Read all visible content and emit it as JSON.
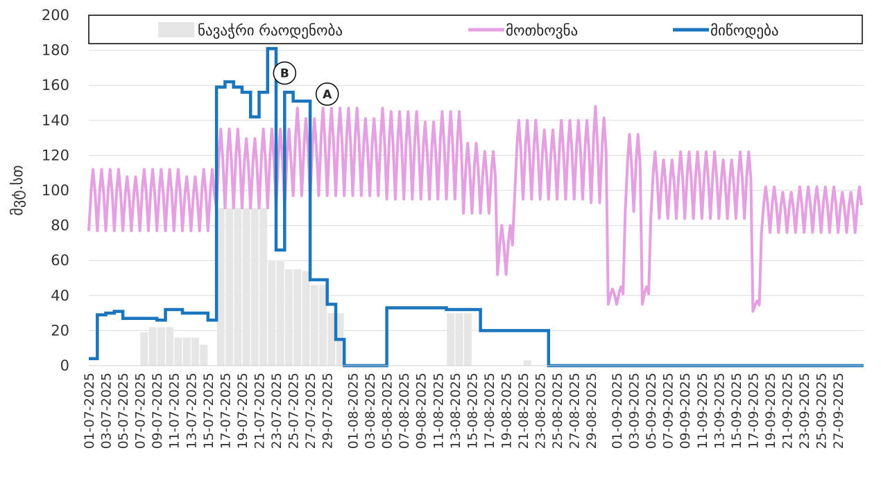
{
  "chart_data": {
    "type": "line",
    "title": "",
    "xlabel": "",
    "ylabel": "მვტ.სთ",
    "ylim": [
      0,
      200
    ],
    "yticks": [
      0,
      20,
      40,
      60,
      80,
      100,
      120,
      140,
      160,
      180,
      200
    ],
    "grid": "horizontal",
    "legend_position": "top",
    "x_tick_labels": [
      "01-07-2025",
      "03-07-2025",
      "05-07-2025",
      "07-07-2025",
      "09-07-2025",
      "11-07-2025",
      "13-07-2025",
      "15-07-2025",
      "17-07-2025",
      "19-07-2025",
      "21-07-2025",
      "23-07-2025",
      "25-07-2025",
      "27-07-2025",
      "29-07-2025",
      "01-08-2025",
      "03-08-2025",
      "05-08-2025",
      "07-08-2025",
      "09-08-2025",
      "11-08-2025",
      "13-08-2025",
      "15-08-2025",
      "17-08-2025",
      "19-08-2025",
      "21-08-2025",
      "23-08-2025",
      "25-08-2025",
      "27-08-2025",
      "29-08-2025",
      "01-09-2025",
      "03-09-2025",
      "05-09-2025",
      "07-09-2025",
      "09-09-2025",
      "11-09-2025",
      "13-09-2025",
      "15-09-2025",
      "17-09-2025",
      "19-09-2025",
      "21-09-2025",
      "23-09-2025",
      "25-09-2025",
      "27-09-2025"
    ],
    "x_range": [
      "2025-07-01",
      "2025-09-30"
    ],
    "series": [
      {
        "name": "ნავაჭრი რაოდენობა",
        "kind": "bar",
        "color": "#e6e6e6",
        "steps": [
          {
            "start": "2025-07-01",
            "end": "2025-07-07",
            "value": 0
          },
          {
            "start": "2025-07-07",
            "end": "2025-07-08",
            "value": 19
          },
          {
            "start": "2025-07-08",
            "end": "2025-07-11",
            "value": 22
          },
          {
            "start": "2025-07-11",
            "end": "2025-07-14",
            "value": 16
          },
          {
            "start": "2025-07-14",
            "end": "2025-07-15",
            "value": 12
          },
          {
            "start": "2025-07-15",
            "end": "2025-07-16",
            "value": 0
          },
          {
            "start": "2025-07-16",
            "end": "2025-07-22",
            "value": 90
          },
          {
            "start": "2025-07-22",
            "end": "2025-07-24",
            "value": 60
          },
          {
            "start": "2025-07-24",
            "end": "2025-07-26",
            "value": 55
          },
          {
            "start": "2025-07-26",
            "end": "2025-07-27",
            "value": 54
          },
          {
            "start": "2025-07-27",
            "end": "2025-07-29",
            "value": 46
          },
          {
            "start": "2025-07-29",
            "end": "2025-07-31",
            "value": 30
          },
          {
            "start": "2025-07-31",
            "end": "2025-08-12",
            "value": 0
          },
          {
            "start": "2025-08-12",
            "end": "2025-08-15",
            "value": 30
          },
          {
            "start": "2025-08-15",
            "end": "2025-08-21",
            "value": 0
          },
          {
            "start": "2025-08-21",
            "end": "2025-08-22",
            "value": 3
          },
          {
            "start": "2025-08-22",
            "end": "2025-09-30",
            "value": 0
          }
        ]
      },
      {
        "name": "მოთხოვნა",
        "kind": "line",
        "color": "#e4a0e0",
        "pattern": "daily oscillation between low and high",
        "envelope": [
          {
            "start": "2025-07-01",
            "end": "2025-07-16",
            "low": 77,
            "high": 112
          },
          {
            "start": "2025-07-16",
            "end": "2025-07-25",
            "low": 90,
            "high": 135
          },
          {
            "start": "2025-07-25",
            "end": "2025-08-05",
            "low": 97,
            "high": 147
          },
          {
            "start": "2025-08-05",
            "end": "2025-08-14",
            "low": 95,
            "high": 145
          },
          {
            "start": "2025-08-14",
            "end": "2025-08-18",
            "low": 87,
            "high": 127
          },
          {
            "start": "2025-08-18",
            "end": "2025-08-20",
            "low": 52,
            "high": 80
          },
          {
            "start": "2025-08-20",
            "end": "2025-08-29",
            "low": 95,
            "high": 140
          },
          {
            "start": "2025-08-29",
            "end": "2025-08-31",
            "low": 93,
            "high": 148
          },
          {
            "start": "2025-08-31",
            "end": "2025-09-02",
            "low": 35,
            "high": 45
          },
          {
            "start": "2025-09-02",
            "end": "2025-09-04",
            "low": 88,
            "high": 132
          },
          {
            "start": "2025-09-04",
            "end": "2025-09-05",
            "low": 35,
            "high": 45
          },
          {
            "start": "2025-09-05",
            "end": "2025-09-17",
            "low": 84,
            "high": 122
          },
          {
            "start": "2025-09-17",
            "end": "2025-09-18",
            "low": 31,
            "high": 37
          },
          {
            "start": "2025-09-18",
            "end": "2025-09-30",
            "low": 76,
            "high": 102
          }
        ]
      },
      {
        "name": "მიწოდება",
        "kind": "step",
        "color": "#1b75bc",
        "steps": [
          {
            "start": "2025-07-01",
            "end": "2025-07-02",
            "value": 4
          },
          {
            "start": "2025-07-02",
            "end": "2025-07-03",
            "value": 29
          },
          {
            "start": "2025-07-03",
            "end": "2025-07-04",
            "value": 30
          },
          {
            "start": "2025-07-04",
            "end": "2025-07-05",
            "value": 31
          },
          {
            "start": "2025-07-05",
            "end": "2025-07-09",
            "value": 27
          },
          {
            "start": "2025-07-09",
            "end": "2025-07-10",
            "value": 26
          },
          {
            "start": "2025-07-10",
            "end": "2025-07-12",
            "value": 32
          },
          {
            "start": "2025-07-12",
            "end": "2025-07-15",
            "value": 30
          },
          {
            "start": "2025-07-15",
            "end": "2025-07-16",
            "value": 26
          },
          {
            "start": "2025-07-16",
            "end": "2025-07-17",
            "value": 159
          },
          {
            "start": "2025-07-17",
            "end": "2025-07-18",
            "value": 162
          },
          {
            "start": "2025-07-18",
            "end": "2025-07-19",
            "value": 159
          },
          {
            "start": "2025-07-19",
            "end": "2025-07-20",
            "value": 156
          },
          {
            "start": "2025-07-20",
            "end": "2025-07-21",
            "value": 142
          },
          {
            "start": "2025-07-21",
            "end": "2025-07-22",
            "value": 156
          },
          {
            "start": "2025-07-22",
            "end": "2025-07-23",
            "value": 181
          },
          {
            "start": "2025-07-23",
            "end": "2025-07-24",
            "value": 66
          },
          {
            "start": "2025-07-24",
            "end": "2025-07-25",
            "value": 156
          },
          {
            "start": "2025-07-25",
            "end": "2025-07-27",
            "value": 151
          },
          {
            "start": "2025-07-27",
            "end": "2025-07-29",
            "value": 49
          },
          {
            "start": "2025-07-29",
            "end": "2025-07-30",
            "value": 35
          },
          {
            "start": "2025-07-30",
            "end": "2025-07-31",
            "value": 15
          },
          {
            "start": "2025-07-31",
            "end": "2025-08-05",
            "value": 0
          },
          {
            "start": "2025-08-05",
            "end": "2025-08-12",
            "value": 33
          },
          {
            "start": "2025-08-12",
            "end": "2025-08-14",
            "value": 32
          },
          {
            "start": "2025-08-14",
            "end": "2025-08-16",
            "value": 32
          },
          {
            "start": "2025-08-16",
            "end": "2025-08-24",
            "value": 20
          },
          {
            "start": "2025-08-24",
            "end": "2025-09-30",
            "value": 0
          }
        ]
      }
    ],
    "annotations": [
      {
        "label": "B",
        "date": "2025-07-24",
        "value": 167
      },
      {
        "label": "A",
        "date": "2025-07-29",
        "value": 155
      }
    ]
  }
}
